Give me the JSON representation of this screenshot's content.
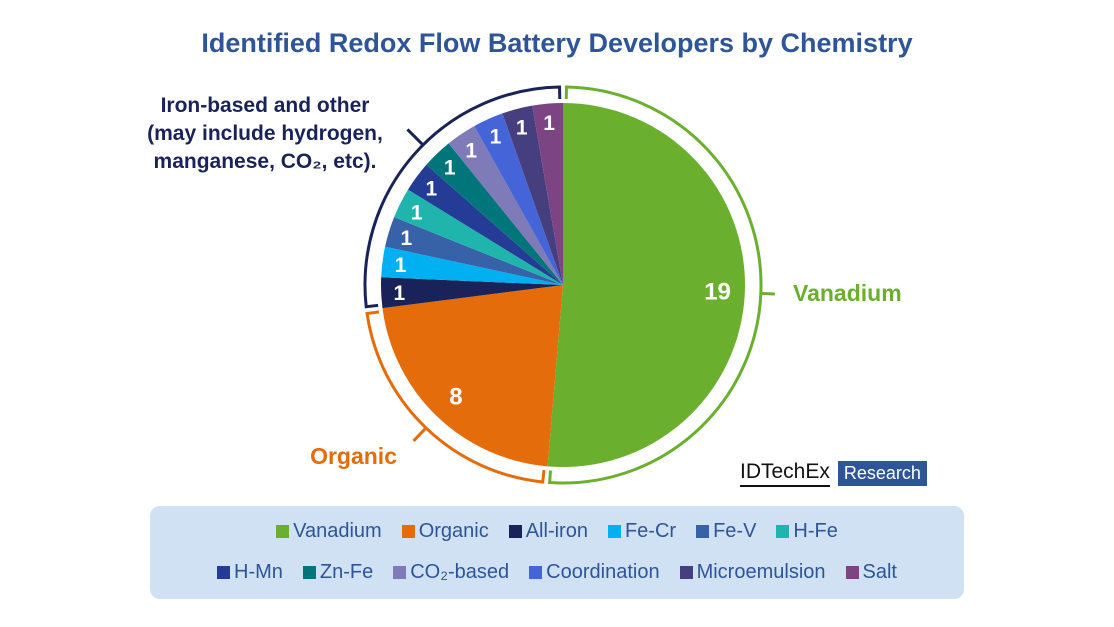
{
  "chart_data": {
    "type": "pie",
    "title": "Identified Redox Flow Battery Developers by Chemistry",
    "slices": [
      {
        "name": "Vanadium",
        "value": 19,
        "color": "#6ab02e"
      },
      {
        "name": "Organic",
        "value": 8,
        "color": "#e46c0a"
      },
      {
        "name": "All-iron",
        "value": 1,
        "color": "#1a2359"
      },
      {
        "name": "Fe-Cr",
        "value": 1,
        "color": "#00b0f0"
      },
      {
        "name": "Fe-V",
        "value": 1,
        "color": "#3762a8"
      },
      {
        "name": "H-Fe",
        "value": 1,
        "color": "#1fb5ad"
      },
      {
        "name": "H-Mn",
        "value": 1,
        "color": "#253c97"
      },
      {
        "name": "Zn-Fe",
        "value": 1,
        "color": "#00757a"
      },
      {
        "name": "CO₂-based",
        "value": 1,
        "color": "#7f7ab8"
      },
      {
        "name": "Coordination",
        "value": 1,
        "color": "#4464d8"
      },
      {
        "name": "Microemulsion",
        "value": 1,
        "color": "#463f7f"
      },
      {
        "name": "Salt",
        "value": 1,
        "color": "#7d4484"
      }
    ],
    "group_labels": {
      "vanadium": "Vanadium",
      "organic": "Organic",
      "iron": [
        "Iron-based and other",
        "(may include hydrogen,",
        "manganese, CO₂, etc)."
      ]
    },
    "legend_placement": "bottom"
  },
  "logo": {
    "text": "IDTechEx",
    "badge": "Research"
  }
}
